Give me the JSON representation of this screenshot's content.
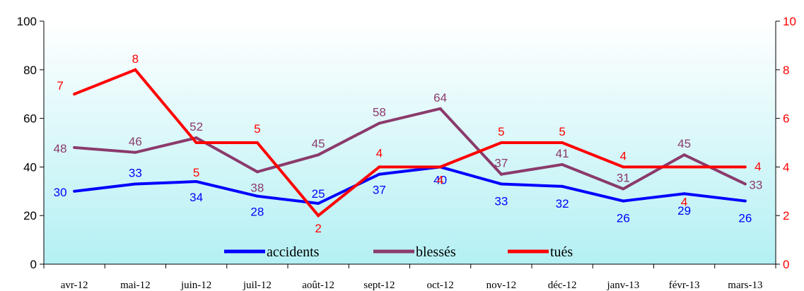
{
  "chart_data": {
    "type": "line",
    "categories": [
      "avr-12",
      "mai-12",
      "juin-12",
      "juil-12",
      "août-12",
      "sept-12",
      "oct-12",
      "nov-12",
      "déc-12",
      "janv-13",
      "févr-13",
      "mars-13"
    ],
    "y_left": {
      "ylim": [
        0,
        100
      ],
      "ticks": [
        "0",
        "20",
        "40",
        "60",
        "80",
        "100"
      ]
    },
    "y_right": {
      "ylim": [
        0,
        10
      ],
      "ticks": [
        "0",
        "2",
        "4",
        "6",
        "8",
        "10"
      ],
      "color": "#ff0000"
    },
    "series": [
      {
        "name": "accidents",
        "axis": "left",
        "color": "#0000ff",
        "values": [
          30,
          33,
          34,
          28,
          25,
          37,
          40,
          33,
          32,
          26,
          29,
          26
        ],
        "labels": [
          "30",
          "33",
          "34",
          "28",
          "25",
          "37",
          "40",
          "33",
          "32",
          "26",
          "29",
          "26"
        ]
      },
      {
        "name": "blessés",
        "axis": "left",
        "color": "#8b3a6b",
        "values": [
          48,
          46,
          52,
          38,
          45,
          58,
          64,
          37,
          41,
          31,
          45,
          33
        ],
        "labels": [
          "48",
          "46",
          "52",
          "38",
          "45",
          "58",
          "64",
          "37",
          "41",
          "31",
          "45",
          "33"
        ]
      },
      {
        "name": "tués",
        "axis": "right",
        "color": "#ff0000",
        "values": [
          7,
          8,
          5,
          5,
          2,
          4,
          4,
          5,
          5,
          4,
          4,
          4
        ],
        "labels": [
          "7",
          "8",
          "5",
          "5",
          "2",
          "4",
          "4",
          "5",
          "5",
          "4",
          "4",
          "4"
        ]
      }
    ],
    "legend": {
      "placement": "bottom-center",
      "entries": [
        "accidents",
        "blessés",
        "tués"
      ]
    },
    "background": {
      "gradient_top": "#ffffff",
      "gradient_bottom": "#b4f0f4"
    },
    "grid": false
  }
}
